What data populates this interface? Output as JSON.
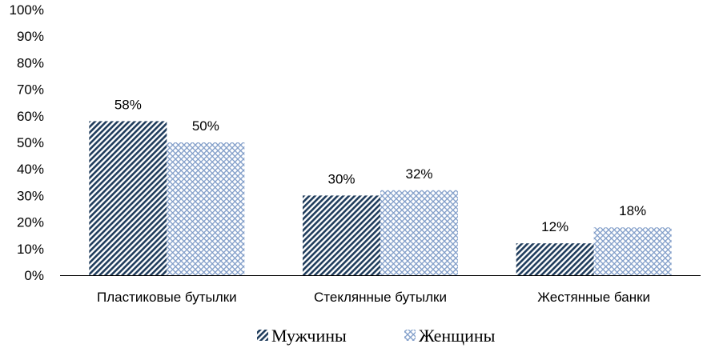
{
  "chart_data": {
    "type": "bar",
    "categories": [
      "Пластиковые бутылки",
      "Стеклянные бутылки",
      "Жестянные банки"
    ],
    "series": [
      {
        "name": "Мужчины",
        "values": [
          58,
          30,
          12
        ],
        "labels": [
          "58%",
          "30%",
          "12%"
        ],
        "pattern": "diagonal-hatch",
        "color": "#1f3c5c"
      },
      {
        "name": "Женщины",
        "values": [
          50,
          32,
          18
        ],
        "labels": [
          "50%",
          "32%",
          "18%"
        ],
        "pattern": "crosshatch",
        "color": "#7f9cc8"
      }
    ],
    "ylim": [
      0,
      100
    ],
    "yticks": [
      "0%",
      "10%",
      "20%",
      "30%",
      "40%",
      "50%",
      "60%",
      "70%",
      "80%",
      "90%",
      "100%"
    ],
    "ytick_values": [
      0,
      10,
      20,
      30,
      40,
      50,
      60,
      70,
      80,
      90,
      100
    ],
    "grid": false,
    "legend_position": "bottom"
  }
}
